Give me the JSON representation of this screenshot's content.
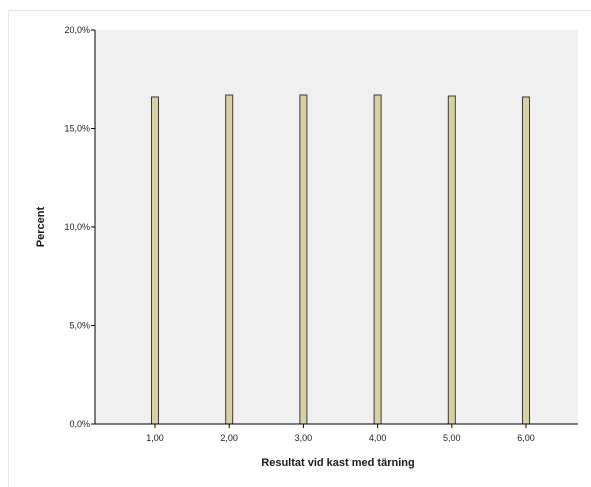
{
  "chart_data": {
    "type": "bar",
    "categories": [
      "1,00",
      "2,00",
      "3,00",
      "4,00",
      "5,00",
      "6,00"
    ],
    "values": [
      16.6,
      16.7,
      16.7,
      16.7,
      16.65,
      16.6
    ],
    "xlabel": "Resultat vid kast med tärning",
    "ylabel": "Percent",
    "ylim": [
      0,
      20
    ],
    "yticks": [
      0,
      5,
      10,
      15,
      20
    ],
    "ytick_labels": [
      "0,0%",
      "5,0%",
      "10,0%",
      "15,0%",
      "20,0%"
    ],
    "grid": false,
    "legend": "none",
    "colors": {
      "bar_fill": "#d9d2a0",
      "bar_stroke": "#3a3a3a",
      "plot_background": "#f0f0f0",
      "axis": "#000000"
    }
  }
}
